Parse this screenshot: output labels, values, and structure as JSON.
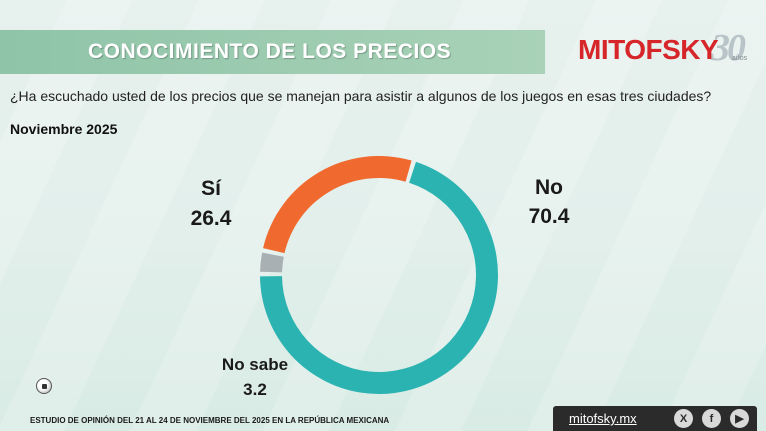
{
  "header": {
    "title": "CONOCIMIENTO DE LOS PRECIOS",
    "logo": {
      "name": "MITOFSKY",
      "number": "30",
      "suffix": "años"
    }
  },
  "question": "¿Ha escuchado usted de los precios que se manejan para asistir a algunos de los juegos en esas tres ciudades?",
  "period": "Noviembre 2025",
  "chart_data": {
    "type": "pie",
    "donut": true,
    "slices": [
      {
        "label": "No",
        "value": 70.4,
        "value_text": "70.4",
        "color": "#2ab3b1"
      },
      {
        "label": "No sabe",
        "value": 3.2,
        "value_text": "3.2",
        "color": "#a9b0b3"
      },
      {
        "label": "Sí",
        "value": 26.4,
        "value_text": "26.4",
        "color": "#f06a2f"
      }
    ]
  },
  "footer": {
    "note": "ESTUDIO DE OPINIÓN DEL 21 AL 24 DE NOVIEMBRE DEL 2025 EN LA REPÚBLICA MEXICANA",
    "site": "mitofsky.mx",
    "social": [
      {
        "icon": "x-icon",
        "glyph": "X"
      },
      {
        "icon": "facebook-icon",
        "glyph": "f"
      },
      {
        "icon": "youtube-icon",
        "glyph": "▶"
      }
    ]
  },
  "colors": {
    "title_bar": "#9fccb3",
    "logo_red": "#d6262a",
    "footer_bar": "#2b2b2b"
  }
}
